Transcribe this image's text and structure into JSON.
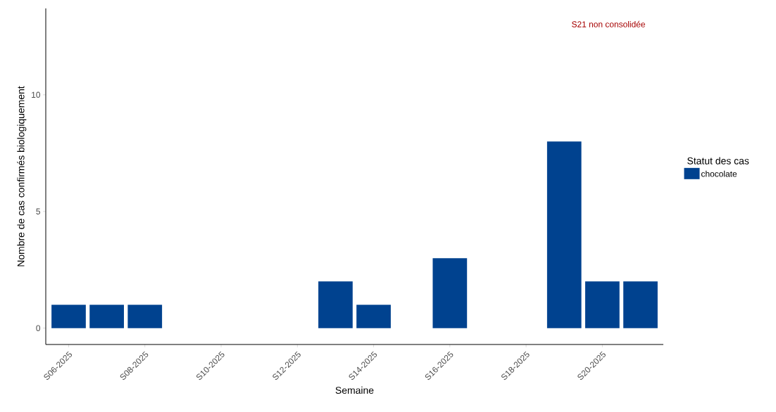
{
  "chart_data": {
    "type": "bar",
    "xlabel": "Semaine",
    "ylabel": "Nombre de cas confirmés biologiquement",
    "legend_title": "Statut des cas",
    "categories": [
      "S06-2025",
      null,
      "S08-2025",
      null,
      "S10-2025",
      null,
      "S12-2025",
      null,
      "S14-2025",
      null,
      "S16-2025",
      null,
      "S18-2025",
      null,
      "S20-2025",
      null
    ],
    "series": [
      {
        "name": "chocolate",
        "color": "#00428f",
        "values": [
          1,
          1,
          1,
          0,
          0,
          0,
          0,
          2,
          1,
          0,
          3,
          0,
          0,
          8,
          2,
          2
        ]
      }
    ],
    "ylim": [
      -0.7,
      13.7
    ],
    "yticks": [
      0,
      5,
      10
    ],
    "grid": false,
    "legend": "right",
    "annotations": [
      "S21 non consolidée"
    ]
  }
}
